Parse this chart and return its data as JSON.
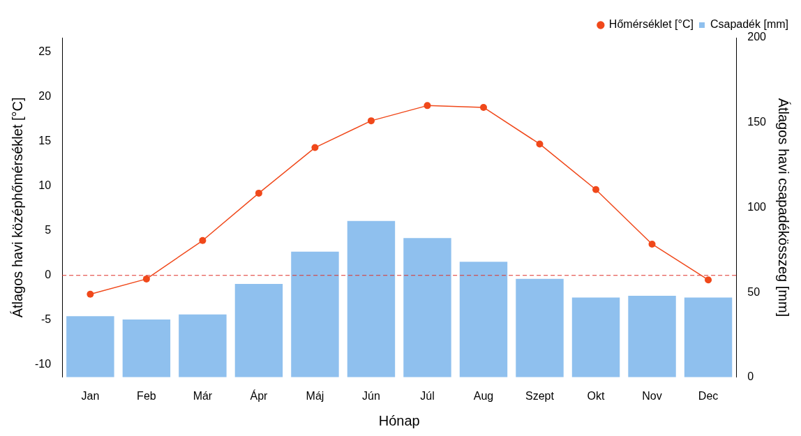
{
  "chart_data": {
    "type": "bar",
    "categories": [
      "Jan",
      "Feb",
      "Már",
      "Ápr",
      "Máj",
      "Jún",
      "Júl",
      "Aug",
      "Szept",
      "Okt",
      "Nov",
      "Dec"
    ],
    "series": [
      {
        "name": "Hőmérséklet [°C]",
        "type": "line",
        "color": "#f0481a",
        "values": [
          -2.1,
          -0.4,
          3.9,
          9.2,
          14.3,
          17.3,
          19.0,
          18.8,
          14.7,
          9.6,
          3.5,
          -0.5
        ]
      },
      {
        "name": "Csapadék [mm]",
        "axis": "y2",
        "color": "#8fc0ee",
        "values": [
          36,
          34,
          37,
          55,
          74,
          92,
          82,
          68,
          58,
          47,
          48,
          47
        ]
      }
    ],
    "xlabel": "Hónap",
    "ylabel": "Átlagos havi középhőmérséklet [°C]",
    "y2label": "Átlagos havi csapadékösszeg [mm]",
    "ylim": [
      -11.4,
      26.6
    ],
    "yticks": [
      -10,
      -5,
      0,
      5,
      10,
      15,
      20,
      25
    ],
    "y2lim": [
      0,
      200
    ],
    "y2ticks": [
      0,
      50,
      100,
      150,
      200
    ],
    "ref_lines": [
      {
        "axis": "y",
        "value": 0,
        "color": "#e0302a",
        "line_style": "dashed"
      }
    ],
    "legend": "top right",
    "marker": "circle",
    "grid": false
  }
}
